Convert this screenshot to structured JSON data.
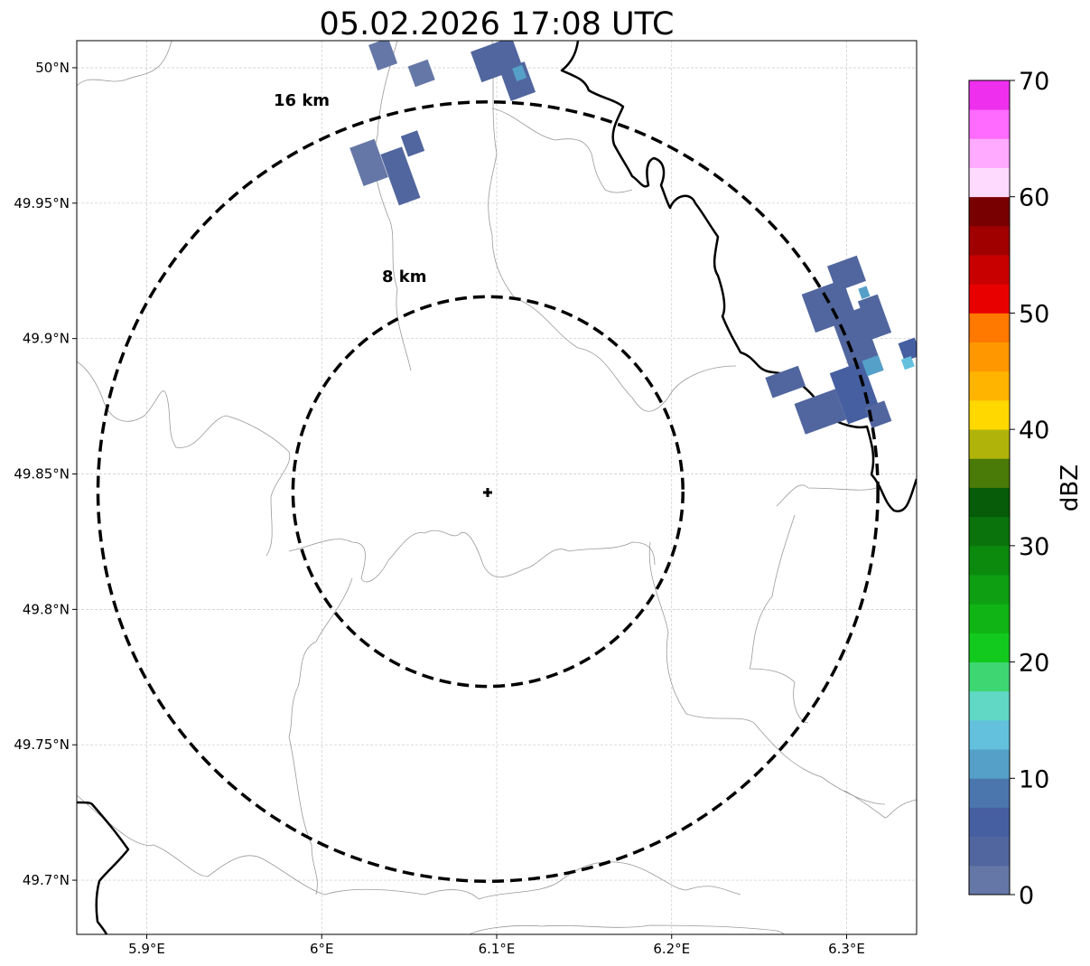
{
  "title": "05.02.2026 17:08 UTC",
  "x_ticks": [
    {
      "lon": 5.9,
      "label": "5.9°E"
    },
    {
      "lon": 6.0,
      "label": "6°E"
    },
    {
      "lon": 6.1,
      "label": "6.1°E"
    },
    {
      "lon": 6.2,
      "label": "6.2°E"
    },
    {
      "lon": 6.3,
      "label": "6.3°E"
    }
  ],
  "y_ticks": [
    {
      "lat": 50.0,
      "label": "50°N"
    },
    {
      "lat": 49.95,
      "label": "49.95°N"
    },
    {
      "lat": 49.9,
      "label": "49.9°N"
    },
    {
      "lat": 49.85,
      "label": "49.85°N"
    },
    {
      "lat": 49.8,
      "label": "49.8°N"
    },
    {
      "lat": 49.75,
      "label": "49.75°N"
    },
    {
      "lat": 49.7,
      "label": "49.7°N"
    }
  ],
  "extent": {
    "lon_min": 5.86,
    "lon_max": 6.34,
    "lat_min": 49.68,
    "lat_max": 50.01
  },
  "radar_site": {
    "lon": 6.095,
    "lat": 49.8435
  },
  "range_rings": [
    {
      "radius_km": 8,
      "label": "8 km"
    },
    {
      "radius_km": 16,
      "label": "16 km"
    }
  ],
  "colorbar": {
    "label": "dBZ",
    "min": 0,
    "max": 70,
    "tick_values": [
      0,
      10,
      20,
      30,
      40,
      50,
      60,
      70
    ],
    "tick_labels": [
      "0",
      "10",
      "20",
      "30",
      "40",
      "50",
      "60",
      "70"
    ],
    "colors": [
      "#6577a6",
      "#51669e",
      "#465fa0",
      "#4b76ad",
      "#55a0c8",
      "#63c1de",
      "#61d7c6",
      "#3ed672",
      "#12c91e",
      "#10b414",
      "#0e9f12",
      "#0b8a0e",
      "#0a730c",
      "#065c08",
      "#4a7a08",
      "#b0b40a",
      "#ffd800",
      "#ffb400",
      "#ff9800",
      "#ff7800",
      "#e80000",
      "#c80000",
      "#a00000",
      "#780000",
      "#ffdaff",
      "#ffaaff",
      "#ff6aff",
      "#ee30ee"
    ]
  },
  "reflectivity_cells": [
    {
      "lon": 6.035,
      "lat": 50.005,
      "lon_w": 0.012,
      "lat_h": 0.01,
      "dbz": 2
    },
    {
      "lon": 6.057,
      "lat": 49.998,
      "lon_w": 0.012,
      "lat_h": 0.008,
      "dbz": 2
    },
    {
      "lon": 6.027,
      "lat": 49.965,
      "lon_w": 0.015,
      "lat_h": 0.015,
      "dbz": 2
    },
    {
      "lon": 6.045,
      "lat": 49.96,
      "lon_w": 0.013,
      "lat_h": 0.02,
      "dbz": 3
    },
    {
      "lon": 6.052,
      "lat": 49.972,
      "lon_w": 0.01,
      "lat_h": 0.008,
      "dbz": 4
    },
    {
      "lon": 6.1,
      "lat": 50.003,
      "lon_w": 0.025,
      "lat_h": 0.012,
      "dbz": 4
    },
    {
      "lon": 6.112,
      "lat": 49.995,
      "lon_w": 0.015,
      "lat_h": 0.012,
      "dbz": 4
    },
    {
      "lon": 6.113,
      "lat": 49.998,
      "lon_w": 0.006,
      "lat_h": 0.005,
      "dbz": 12
    },
    {
      "lon": 6.265,
      "lat": 49.884,
      "lon_w": 0.02,
      "lat_h": 0.008,
      "dbz": 3
    },
    {
      "lon": 6.285,
      "lat": 49.873,
      "lon_w": 0.025,
      "lat_h": 0.012,
      "dbz": 4
    },
    {
      "lon": 6.29,
      "lat": 49.912,
      "lon_w": 0.025,
      "lat_h": 0.015,
      "dbz": 4
    },
    {
      "lon": 6.3,
      "lat": 49.924,
      "lon_w": 0.018,
      "lat_h": 0.01,
      "dbz": 3
    },
    {
      "lon": 6.305,
      "lat": 49.9,
      "lon_w": 0.018,
      "lat_h": 0.02,
      "dbz": 4
    },
    {
      "lon": 6.305,
      "lat": 49.88,
      "lon_w": 0.02,
      "lat_h": 0.02,
      "dbz": 5
    },
    {
      "lon": 6.316,
      "lat": 49.908,
      "lon_w": 0.012,
      "lat_h": 0.015,
      "dbz": 3
    },
    {
      "lon": 6.31,
      "lat": 49.917,
      "lon_w": 0.005,
      "lat_h": 0.004,
      "dbz": 10
    },
    {
      "lon": 6.315,
      "lat": 49.89,
      "lon_w": 0.01,
      "lat_h": 0.006,
      "dbz": 12
    },
    {
      "lon": 6.318,
      "lat": 49.872,
      "lon_w": 0.012,
      "lat_h": 0.008,
      "dbz": 4
    },
    {
      "lon": 6.336,
      "lat": 49.896,
      "lon_w": 0.01,
      "lat_h": 0.007,
      "dbz": 5
    },
    {
      "lon": 6.335,
      "lat": 49.891,
      "lon_w": 0.006,
      "lat_h": 0.004,
      "dbz": 14
    }
  ]
}
